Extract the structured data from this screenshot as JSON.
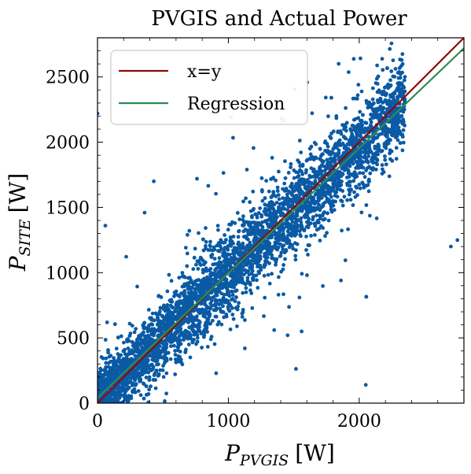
{
  "chart_data": {
    "type": "scatter",
    "title": "PVGIS and Actual Power",
    "xlabel": {
      "main": "P",
      "sub": "PVGIS",
      "unit": "[W]"
    },
    "ylabel": {
      "main": "P",
      "sub": "SITE",
      "unit": "[W]"
    },
    "xlim": [
      0,
      2800
    ],
    "ylim": [
      0,
      2800
    ],
    "xticks": [
      0,
      1000,
      2000
    ],
    "yticks": [
      0,
      500,
      1000,
      1500,
      2000,
      2500
    ],
    "xtick_labels": [
      "0",
      "1000",
      "2000"
    ],
    "ytick_labels": [
      "0",
      "500",
      "1000",
      "1500",
      "2000",
      "2500"
    ],
    "grid": false,
    "legend_position": "top-left",
    "series": [
      {
        "name": "x=y",
        "kind": "line",
        "color": "#8b0a0a",
        "x": [
          0,
          2800
        ],
        "y": [
          0,
          2800
        ]
      },
      {
        "name": "Regression",
        "kind": "line",
        "color": "#2e8b57",
        "x": [
          0,
          2800
        ],
        "y": [
          40,
          2720
        ]
      }
    ],
    "scatter": {
      "color": "#0a5aa5",
      "description_points": [
        [
          0,
          2220
        ],
        [
          1020,
          2190
        ],
        [
          1420,
          2170
        ],
        [
          760,
          1720
        ],
        [
          430,
          1700
        ],
        [
          60,
          1360
        ],
        [
          360,
          1460
        ],
        [
          1860,
          940
        ],
        [
          1560,
          550
        ],
        [
          1350,
          560
        ],
        [
          2050,
          140
        ],
        [
          2750,
          1250
        ],
        [
          2700,
          1200
        ]
      ],
      "trend": {
        "x_max": 2350,
        "slope": 0.965,
        "intercept": 30,
        "spread": 160
      }
    }
  }
}
